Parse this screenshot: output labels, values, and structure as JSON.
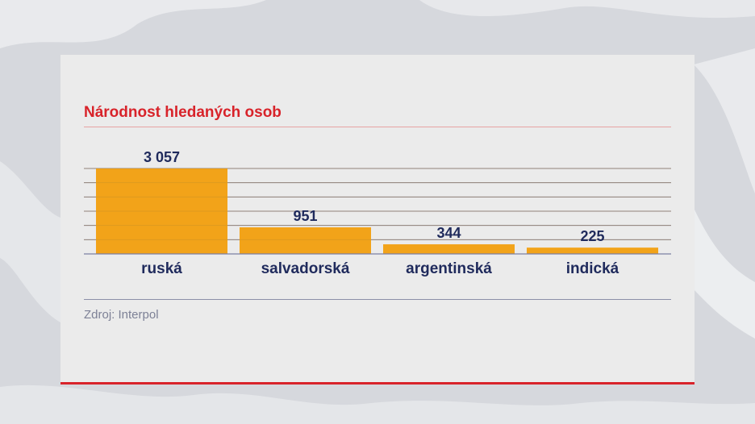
{
  "chart_data": {
    "type": "bar",
    "title": "Národnost hledaných osob",
    "categories": [
      "ruská",
      "salvadorská",
      "argentinská",
      "indická"
    ],
    "values": [
      3057,
      951,
      344,
      225
    ],
    "value_labels": [
      "3 057",
      "951",
      "344",
      "225"
    ],
    "ylim": [
      0,
      3057
    ],
    "grid": true,
    "bar_color": "#f2a319",
    "grid_color": "#7b7fa3",
    "text_color": "#1f2a5c"
  },
  "source": "Zdroj: Interpol",
  "colors": {
    "accent": "#d8232a"
  }
}
